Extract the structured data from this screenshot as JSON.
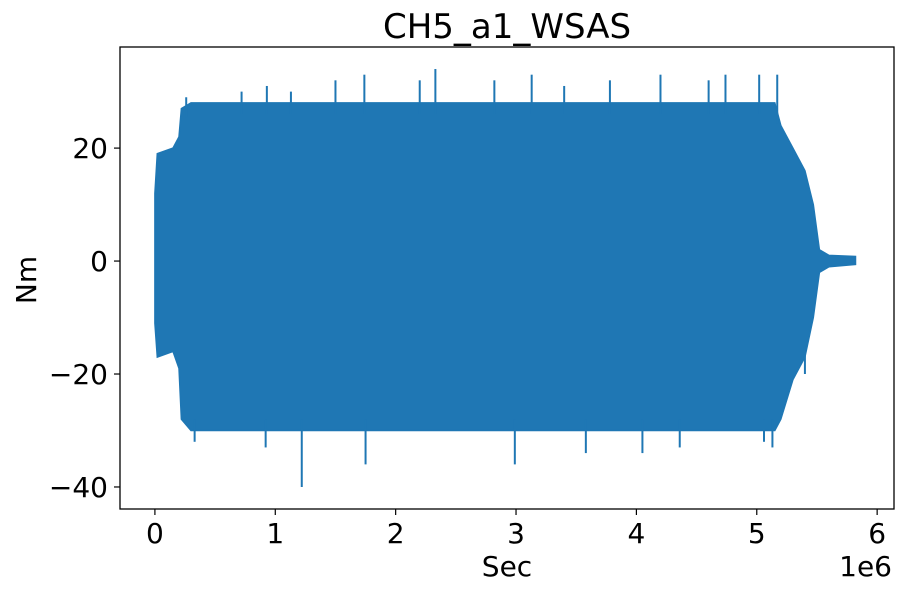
{
  "chart_data": {
    "type": "line",
    "title": "CH5_a1_WSAS",
    "xlabel": "Sec",
    "ylabel": "Nm",
    "x_offset_label": "1e6",
    "xlim": [
      -0.29,
      6.14
    ],
    "ylim": [
      -43.9,
      37.9
    ],
    "x_ticks": [
      {
        "value": 0,
        "label": "0"
      },
      {
        "value": 1,
        "label": "1"
      },
      {
        "value": 2,
        "label": "2"
      },
      {
        "value": 3,
        "label": "3"
      },
      {
        "value": 4,
        "label": "4"
      },
      {
        "value": 5,
        "label": "5"
      },
      {
        "value": 6,
        "label": "6"
      }
    ],
    "y_ticks": [
      {
        "value": 20,
        "label": "20"
      },
      {
        "value": 0,
        "label": "0"
      },
      {
        "value": -20,
        "label": "−20"
      },
      {
        "value": -40,
        "label": "−40"
      }
    ],
    "grid": false,
    "series": [
      {
        "color": "#1f77b4",
        "envelope": [
          {
            "x": 0.0,
            "upper": 12,
            "lower": -11
          },
          {
            "x": 0.02,
            "upper": 19,
            "lower": -17
          },
          {
            "x": 0.15,
            "upper": 20,
            "lower": -16
          },
          {
            "x": 0.2,
            "upper": 22,
            "lower": -19
          },
          {
            "x": 0.22,
            "upper": 27,
            "lower": -28
          },
          {
            "x": 0.3,
            "upper": 28,
            "lower": -30
          },
          {
            "x": 0.6,
            "upper": 28,
            "lower": -30
          },
          {
            "x": 1.0,
            "upper": 28,
            "lower": -30
          },
          {
            "x": 1.5,
            "upper": 28,
            "lower": -30
          },
          {
            "x": 2.0,
            "upper": 28,
            "lower": -30
          },
          {
            "x": 2.5,
            "upper": 28,
            "lower": -30
          },
          {
            "x": 3.0,
            "upper": 28,
            "lower": -30
          },
          {
            "x": 3.5,
            "upper": 28,
            "lower": -30
          },
          {
            "x": 4.0,
            "upper": 28,
            "lower": -30
          },
          {
            "x": 4.5,
            "upper": 28,
            "lower": -30
          },
          {
            "x": 5.0,
            "upper": 28,
            "lower": -30
          },
          {
            "x": 5.15,
            "upper": 28,
            "lower": -30
          },
          {
            "x": 5.2,
            "upper": 24,
            "lower": -28
          },
          {
            "x": 5.3,
            "upper": 20,
            "lower": -21
          },
          {
            "x": 5.4,
            "upper": 16,
            "lower": -17
          },
          {
            "x": 5.47,
            "upper": 10,
            "lower": -10
          },
          {
            "x": 5.52,
            "upper": 2,
            "lower": -2
          },
          {
            "x": 5.6,
            "upper": 1,
            "lower": -1
          },
          {
            "x": 5.82,
            "upper": 0.8,
            "lower": -0.6
          }
        ],
        "spikes": [
          {
            "x": 0.26,
            "value": 29
          },
          {
            "x": 0.33,
            "value": -32
          },
          {
            "x": 0.72,
            "value": 30
          },
          {
            "x": 0.92,
            "value": -33
          },
          {
            "x": 0.93,
            "value": 31
          },
          {
            "x": 1.13,
            "value": 30
          },
          {
            "x": 1.22,
            "value": -40
          },
          {
            "x": 1.5,
            "value": 32
          },
          {
            "x": 1.74,
            "value": 33
          },
          {
            "x": 1.75,
            "value": -36
          },
          {
            "x": 2.2,
            "value": 32
          },
          {
            "x": 2.33,
            "value": 34
          },
          {
            "x": 2.82,
            "value": 32
          },
          {
            "x": 2.99,
            "value": -36
          },
          {
            "x": 3.13,
            "value": 33
          },
          {
            "x": 3.4,
            "value": 31
          },
          {
            "x": 3.58,
            "value": -34
          },
          {
            "x": 3.78,
            "value": 32
          },
          {
            "x": 4.05,
            "value": -34
          },
          {
            "x": 4.2,
            "value": 33
          },
          {
            "x": 4.36,
            "value": -33
          },
          {
            "x": 4.6,
            "value": 32
          },
          {
            "x": 4.74,
            "value": 33
          },
          {
            "x": 5.02,
            "value": 33
          },
          {
            "x": 5.06,
            "value": -32
          },
          {
            "x": 5.13,
            "value": -33
          },
          {
            "x": 5.17,
            "value": 33
          },
          {
            "x": 5.29,
            "value": 20
          },
          {
            "x": 5.35,
            "value": 16
          },
          {
            "x": 5.4,
            "value": -20
          }
        ]
      }
    ]
  }
}
